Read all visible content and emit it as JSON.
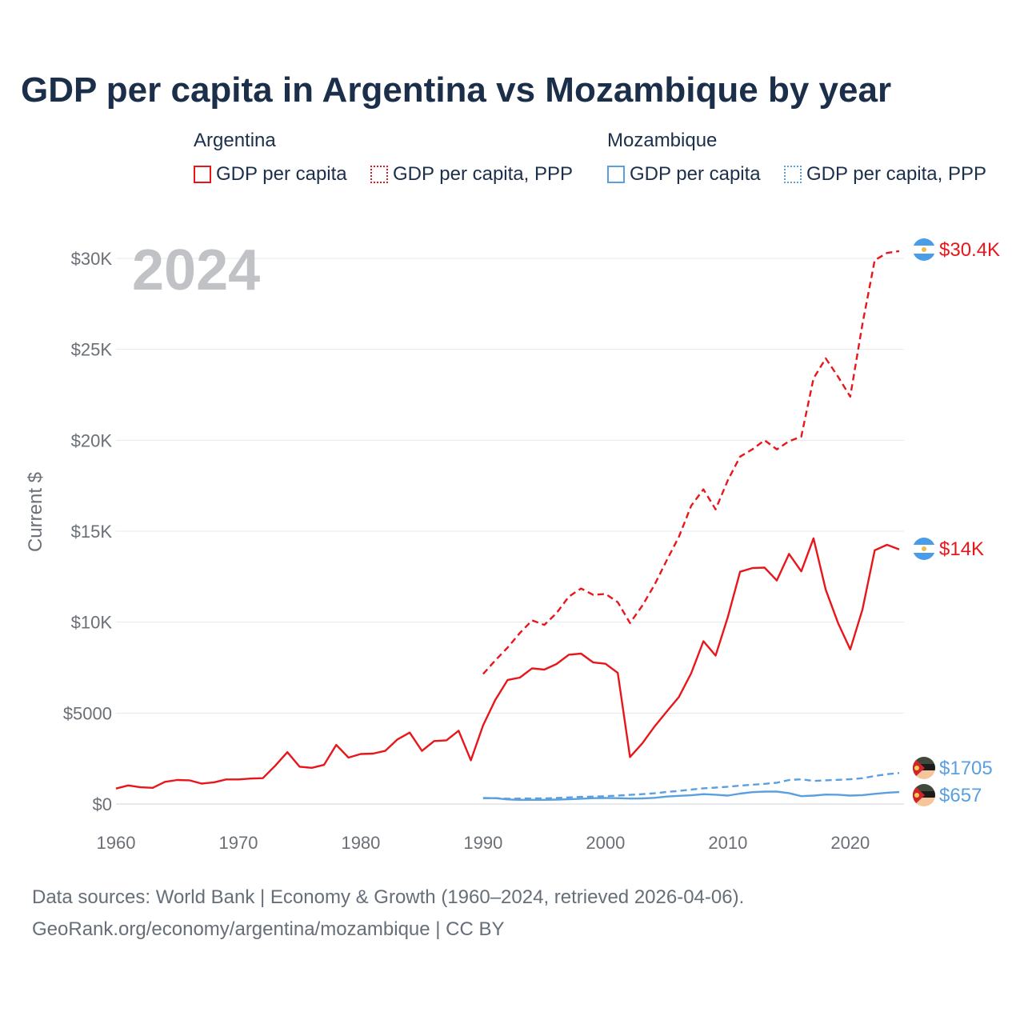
{
  "title": "GDP per capita in Argentina vs Mozambique by year",
  "legend": {
    "groups": [
      {
        "name": "Argentina",
        "items": [
          "GDP per capita",
          "GDP per capita, PPP"
        ],
        "color": "#e8161b"
      },
      {
        "name": "Mozambique",
        "items": [
          "GDP per capita",
          "GDP per capita, PPP"
        ],
        "color": "#5a9fe0"
      }
    ]
  },
  "year_watermark": "2024",
  "footer": {
    "line1": "Data sources: World Bank | Economy & Growth (1960–2024, retrieved 2026-04-06).",
    "line2": "GeoRank.org/economy/argentina/mozambique | CC BY"
  },
  "end_labels": {
    "arg_ppp": "$30.4K",
    "arg_gdp": "$14K",
    "moz_ppp": "$1705",
    "moz_gdp": "$657"
  },
  "chart_data": {
    "type": "line",
    "title": "GDP per capita in Argentina vs Mozambique by year",
    "xlabel": "",
    "ylabel": "Current $",
    "xlim": [
      1960,
      2024
    ],
    "ylim": [
      0,
      30000
    ],
    "x_ticks": [
      1960,
      1970,
      1980,
      1990,
      2000,
      2010,
      2020
    ],
    "y_ticks": [
      0,
      5000,
      10000,
      15000,
      20000,
      25000,
      30000
    ],
    "y_tick_labels": [
      "$0",
      "$5000",
      "$10K",
      "$15K",
      "$20K",
      "$25K",
      "$30K"
    ],
    "series": [
      {
        "name": "Argentina GDP per capita",
        "color": "#e8161b",
        "dash": "solid",
        "start": 1960,
        "values": [
          850,
          1020,
          920,
          890,
          1220,
          1320,
          1300,
          1120,
          1190,
          1350,
          1350,
          1400,
          1420,
          2100,
          2850,
          2050,
          1990,
          2150,
          3250,
          2550,
          2750,
          2770,
          2920,
          3550,
          3930,
          2920,
          3460,
          3500,
          4030,
          2400,
          4330,
          5730,
          6820,
          6950,
          7460,
          7390,
          7700,
          8210,
          8270,
          7780,
          7710,
          7210,
          2580,
          3330,
          4260,
          5080,
          5890,
          7190,
          8950,
          8160,
          10280,
          12770,
          12970,
          13000,
          12290,
          13750,
          12790,
          14610,
          11780,
          9960,
          8500,
          10700,
          13950,
          14250,
          14000
        ]
      },
      {
        "name": "Argentina GDP per capita, PPP",
        "color": "#e8161b",
        "dash": "dashed",
        "start": 1990,
        "values": [
          7150,
          7900,
          8600,
          9400,
          10100,
          9850,
          10500,
          11400,
          11850,
          11500,
          11550,
          11100,
          9950,
          10900,
          12050,
          13400,
          14700,
          16400,
          17300,
          16200,
          17800,
          19100,
          19500,
          20000,
          19500,
          19950,
          20200,
          23400,
          24500,
          23500,
          22400,
          26400,
          29900,
          30300,
          30400
        ]
      },
      {
        "name": "Mozambique GDP per capita",
        "color": "#5a9fe0",
        "dash": "solid",
        "start": 1990,
        "values": [
          320,
          320,
          250,
          230,
          230,
          230,
          240,
          260,
          290,
          320,
          330,
          320,
          300,
          310,
          340,
          410,
          450,
          480,
          540,
          510,
          460,
          570,
          650,
          680,
          680,
          600,
          430,
          460,
          520,
          510,
          460,
          490,
          560,
          620,
          657
        ]
      },
      {
        "name": "Mozambique GDP per capita, PPP",
        "color": "#5a9fe0",
        "dash": "dashed",
        "start": 1990,
        "values": [
          330,
          320,
          290,
          300,
          310,
          310,
          330,
          360,
          390,
          410,
          430,
          460,
          500,
          540,
          590,
          660,
          720,
          790,
          860,
          900,
          950,
          1010,
          1060,
          1110,
          1170,
          1320,
          1360,
          1270,
          1300,
          1330,
          1360,
          1420,
          1540,
          1640,
          1705
        ]
      }
    ]
  }
}
